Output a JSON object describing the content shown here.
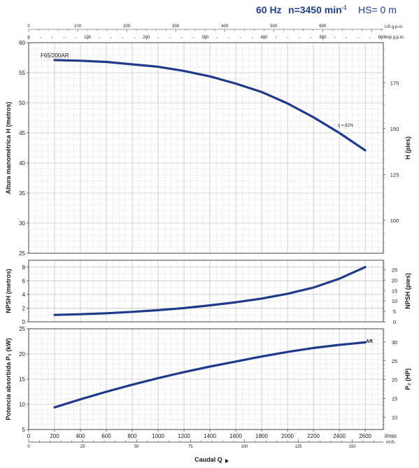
{
  "header": {
    "frequency": "60 Hz",
    "speed": "n=3450 min",
    "speed_sup": "-1",
    "hs": "HS= 0 m"
  },
  "colors": {
    "curve": "#1f3a8a",
    "grid": "#b0b0b0",
    "frame": "#333333",
    "text": "#1a1a1a"
  },
  "chart_data": [
    {
      "type": "line",
      "name": "head-curve",
      "ylabel": "Altura manométrica H  (metros)",
      "ylabel_right": "H  (pies)",
      "ylim": [
        25,
        60
      ],
      "yticks": [
        25,
        30,
        35,
        40,
        45,
        50,
        55,
        60
      ],
      "yticks_right": [
        100,
        125,
        150,
        175
      ],
      "grid": true,
      "annotations": [
        "F65/200AR",
        "η = 82%"
      ],
      "series": [
        {
          "name": "F65/200AR",
          "x": [
            200,
            400,
            600,
            800,
            1000,
            1200,
            1400,
            1600,
            1800,
            2000,
            2200,
            2400,
            2600
          ],
          "y": [
            57.1,
            57.0,
            56.8,
            56.4,
            56.0,
            55.3,
            54.4,
            53.2,
            51.8,
            49.9,
            47.6,
            45.0,
            42.1
          ]
        }
      ]
    },
    {
      "type": "line",
      "name": "npsh-curve",
      "ylabel": "NPSH  (metros)",
      "ylabel_right": "NPSH  (pies)",
      "ylim": [
        0,
        9
      ],
      "yticks": [
        0,
        2,
        4,
        6,
        8
      ],
      "yticks_right": [
        0,
        5,
        10,
        15,
        20,
        25
      ],
      "grid": true,
      "series": [
        {
          "name": "",
          "x": [
            200,
            400,
            600,
            800,
            1000,
            1200,
            1400,
            1600,
            1800,
            2000,
            2200,
            2400,
            2600
          ],
          "y": [
            1.0,
            1.1,
            1.25,
            1.45,
            1.7,
            2.0,
            2.4,
            2.85,
            3.4,
            4.1,
            5.0,
            6.3,
            8.0
          ]
        }
      ]
    },
    {
      "type": "line",
      "name": "power-curve",
      "ylabel": "Potencia absorbida P₂ (kW)",
      "ylabel_right": "P₂ (HP)",
      "ylim": [
        5,
        25
      ],
      "yticks": [
        5,
        10,
        15,
        20,
        25
      ],
      "yticks_right": [
        10,
        15,
        20,
        25,
        30
      ],
      "xlabel": "Caudal Q",
      "annotations": [
        "AR"
      ],
      "grid": true,
      "series": [
        {
          "name": "AR",
          "x": [
            200,
            400,
            600,
            800,
            1000,
            1200,
            1400,
            1600,
            1800,
            2000,
            2200,
            2400,
            2600
          ],
          "y": [
            9.4,
            11.0,
            12.5,
            13.9,
            15.2,
            16.4,
            17.5,
            18.5,
            19.5,
            20.4,
            21.2,
            21.8,
            22.3
          ]
        }
      ]
    }
  ],
  "axes": {
    "x_main": {
      "ticks": [
        0,
        200,
        400,
        600,
        800,
        1000,
        1200,
        1400,
        1600,
        1800,
        2000,
        2200,
        2400,
        2600
      ],
      "unit": "l/min",
      "range": [
        0,
        2740
      ]
    },
    "x_m3h": {
      "ticks": [
        0,
        25,
        50,
        75,
        100,
        125,
        150
      ],
      "unit": "m³/h"
    },
    "x_us_gpm": {
      "ticks": [
        0,
        100,
        200,
        300,
        400,
        500,
        600
      ],
      "unit": "US g.p.m."
    },
    "x_imp_gpm": {
      "ticks": [
        0,
        100,
        200,
        300,
        400,
        500,
        600
      ],
      "unit": "Imp g.p.m."
    }
  }
}
